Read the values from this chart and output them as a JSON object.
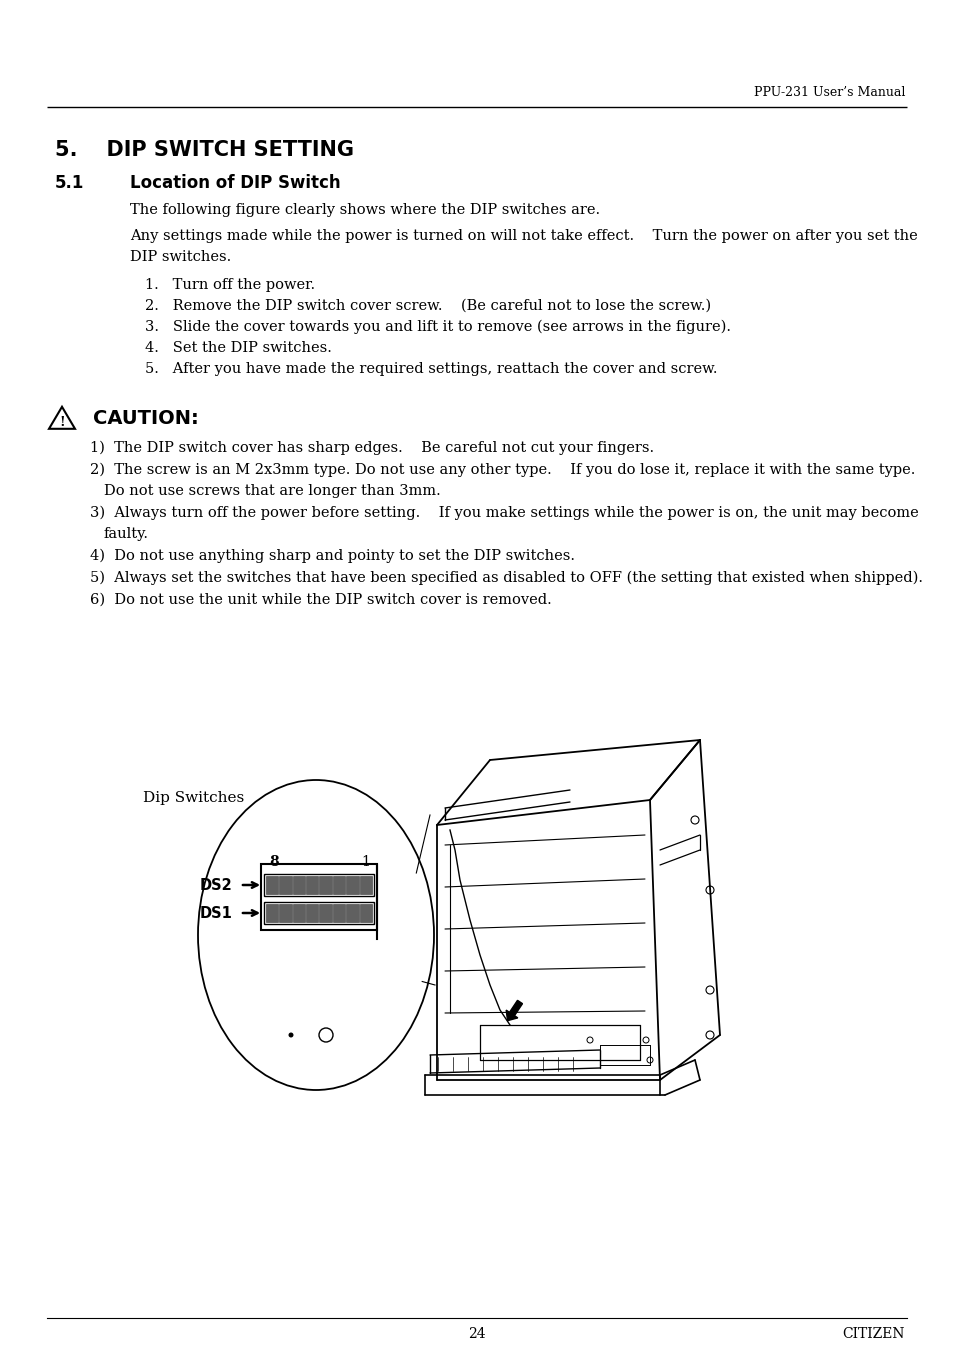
{
  "header_text": "PPU-231 User’s Manual",
  "section_title": "5.    DIP SWITCH SETTING",
  "subsection": "5.1",
  "subsection_title": "Location of DIP Switch",
  "para1": "The following figure clearly shows where the DIP switches are.",
  "para2_line1": "Any settings made while the power is turned on will not take effect.    Turn the power on after you set the",
  "para2_line2": "DIP switches.",
  "steps": [
    "1.   Turn off the power.",
    "2.   Remove the DIP switch cover screw.    (Be careful not to lose the screw.)",
    "3.   Slide the cover towards you and lift it to remove (see arrows in the figure).",
    "4.   Set the DIP switches.",
    "5.   After you have made the required settings, reattach the cover and screw."
  ],
  "caution_title": "CAUTION:",
  "caution_items": [
    [
      "1)  The DIP switch cover has sharp edges.    Be careful not cut your fingers."
    ],
    [
      "2)  The screw is an M 2x3mm type. Do not use any other type.    If you do lose it, replace it with the same type.",
      "     Do not use screws that are longer than 3mm."
    ],
    [
      "3)  Always turn off the power before setting.    If you make settings while the power is on, the unit may become",
      "     faulty."
    ],
    [
      "4)  Do not use anything sharp and pointy to set the DIP switches."
    ],
    [
      "5)  Always set the switches that have been specified as disabled to OFF (the setting that existed when shipped)."
    ],
    [
      "6)  Do not use the unit while the DIP switch cover is removed."
    ]
  ],
  "dip_label": "Dip Switches",
  "ds2_label": "DS2",
  "ds1_label": "DS1",
  "page_number": "24",
  "footer_right": "CITIZEN",
  "bg_color": "#ffffff",
  "text_color": "#000000"
}
